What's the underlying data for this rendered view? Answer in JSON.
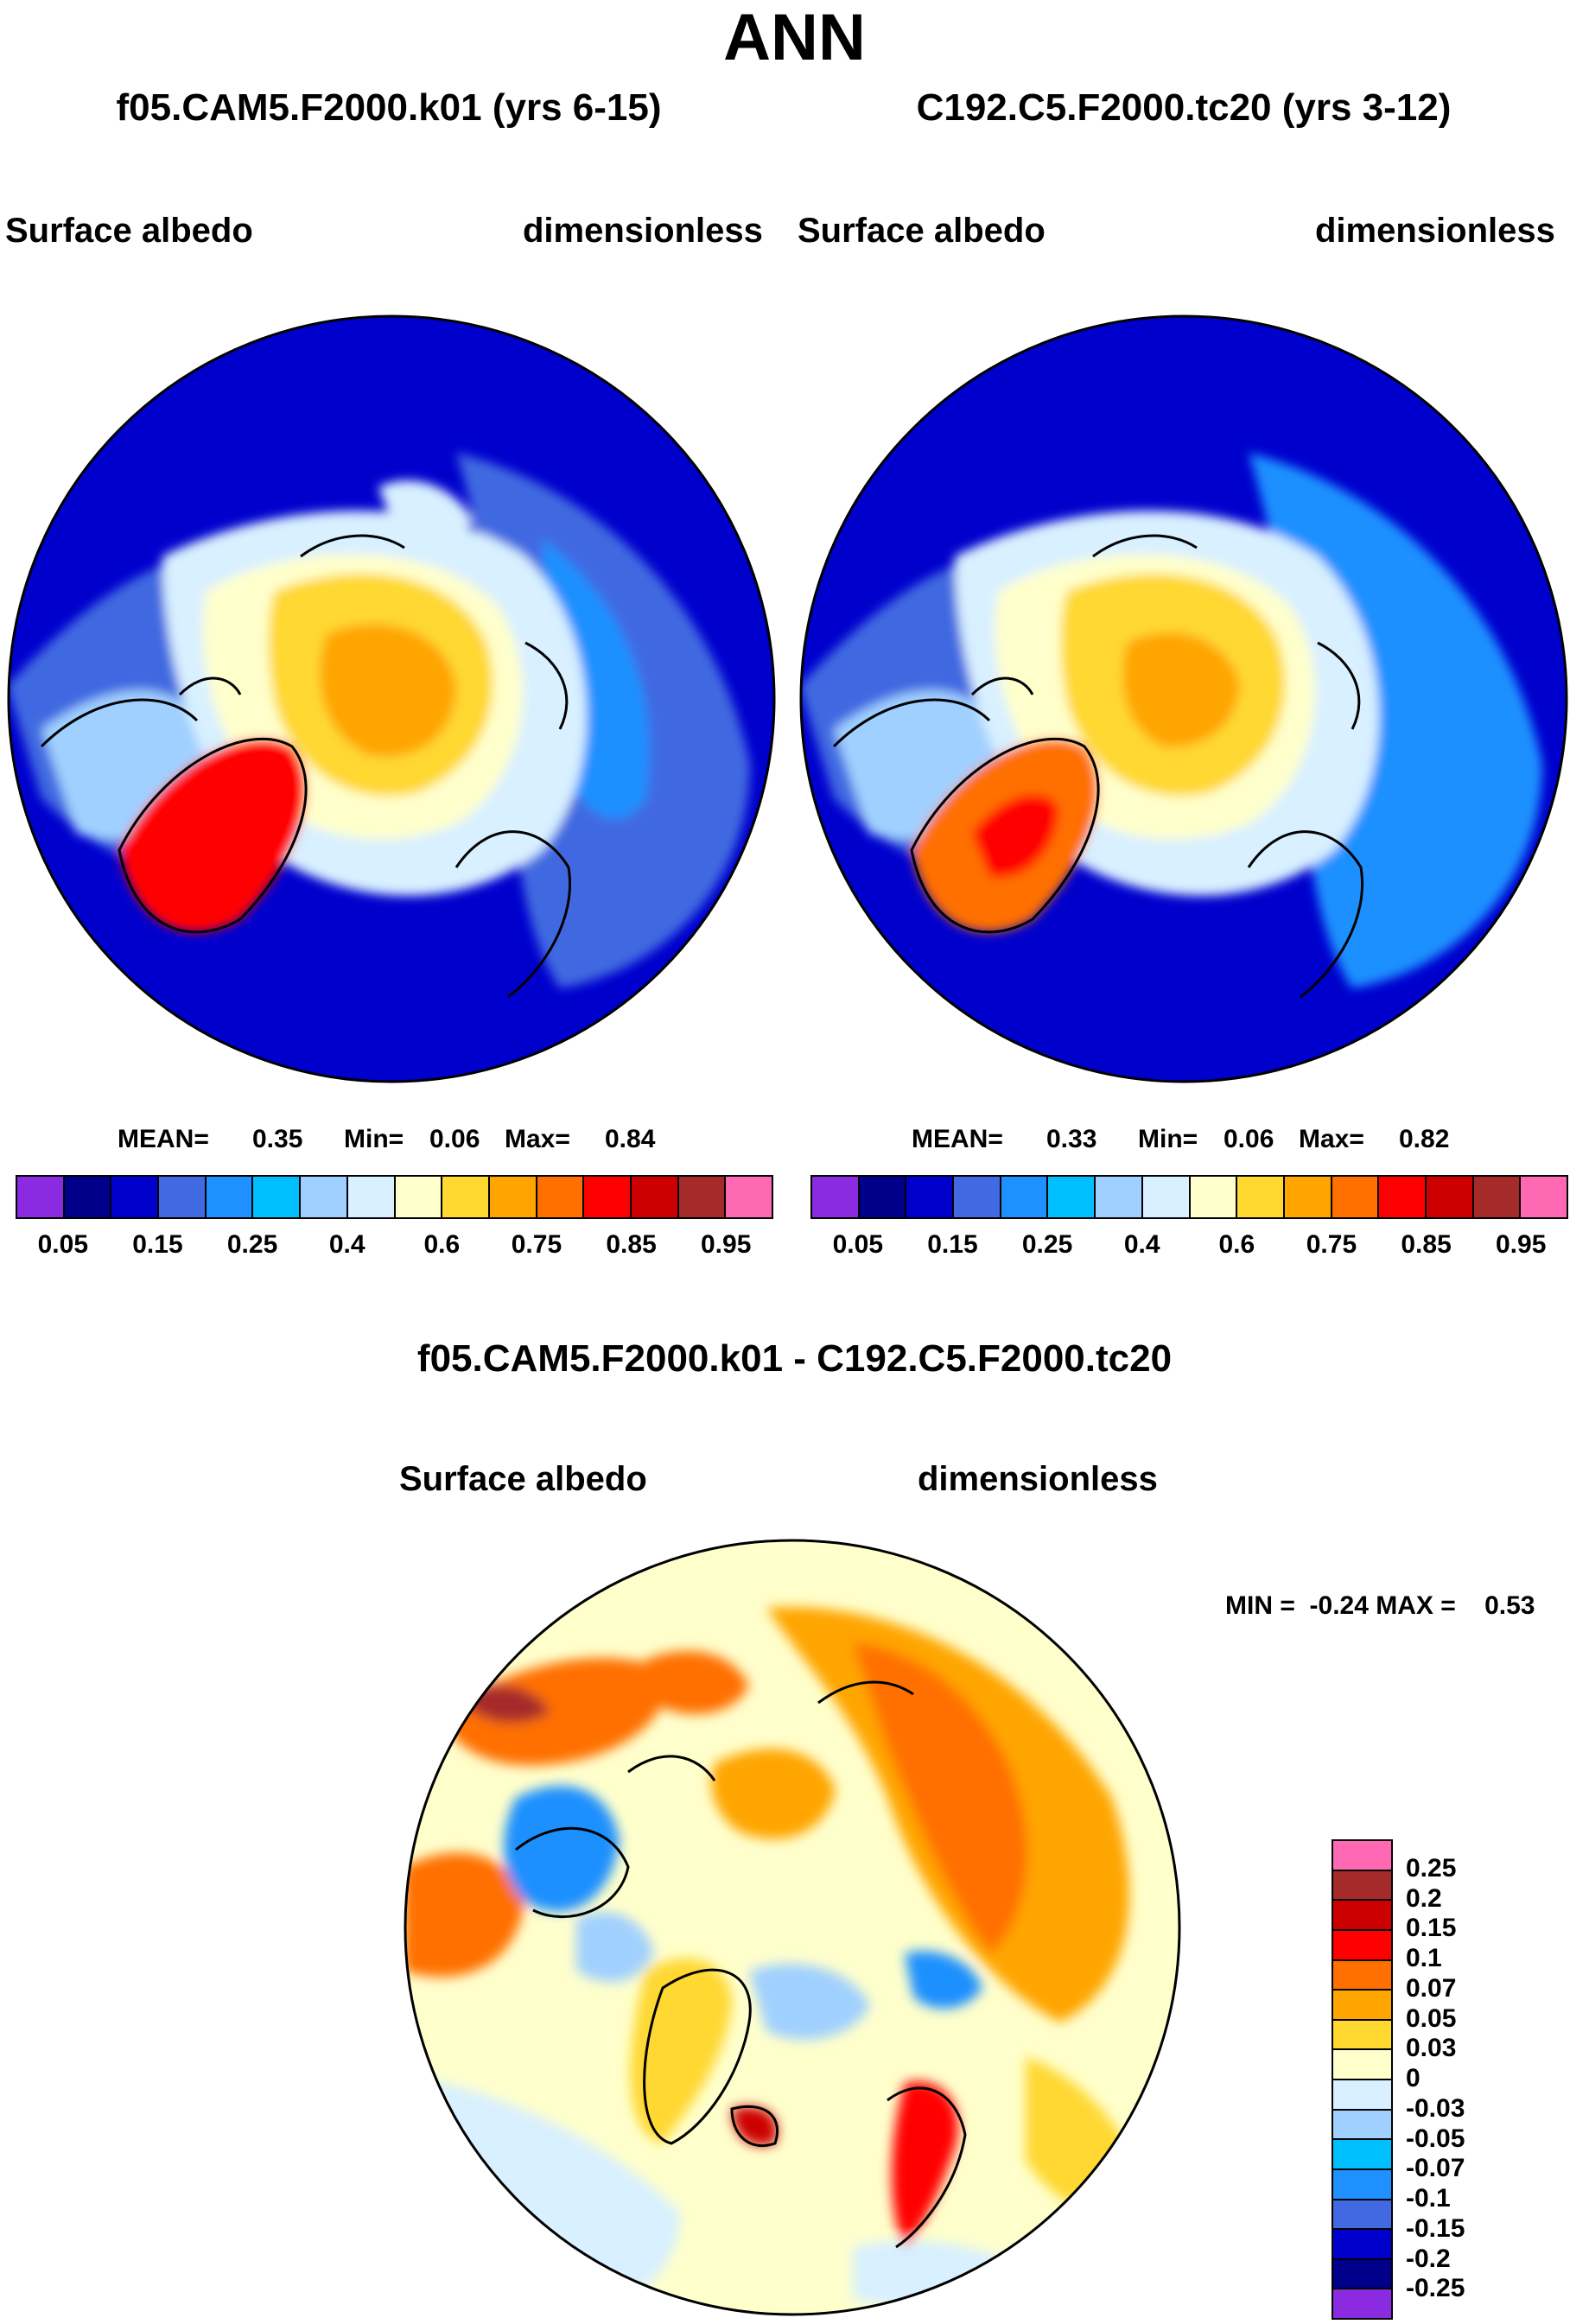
{
  "title": "ANN",
  "panels": [
    {
      "case": "f05.CAM5.F2000.k01 (yrs 6-15)",
      "variable": "Surface albedo",
      "units": "dimensionless",
      "stats": {
        "mean_label": "MEAN=",
        "mean": "0.35",
        "min_label": "Min=",
        "min": "0.06",
        "max_label": "Max=",
        "max": "0.84"
      }
    },
    {
      "case": "C192.C5.F2000.tc20 (yrs 3-12)",
      "variable": "Surface albedo",
      "units": "dimensionless",
      "stats": {
        "mean_label": "MEAN=",
        "mean": "0.33",
        "min_label": "Min=",
        "min": "0.06",
        "max_label": "Max=",
        "max": "0.82"
      }
    }
  ],
  "diff": {
    "title": "f05.CAM5.F2000.k01 - C192.C5.F2000.tc20",
    "variable": "Surface albedo",
    "units": "dimensionless",
    "minmax": "MIN =  -0.24 MAX =    0.53"
  },
  "chart_data": [
    {
      "type": "heatmap",
      "projection": "north polar stereographic",
      "title": "f05.CAM5.F2000.k01 (yrs 6-15)",
      "variable": "Surface albedo",
      "units": "dimensionless",
      "mean": 0.35,
      "min": 0.06,
      "max": 0.84
    },
    {
      "type": "heatmap",
      "projection": "north polar stereographic",
      "title": "C192.C5.F2000.tc20 (yrs 3-12)",
      "variable": "Surface albedo",
      "units": "dimensionless",
      "mean": 0.33,
      "min": 0.06,
      "max": 0.82
    },
    {
      "type": "heatmap",
      "projection": "north polar stereographic",
      "title": "f05.CAM5.F2000.k01 - C192.C5.F2000.tc20",
      "variable": "Surface albedo",
      "units": "dimensionless",
      "min": -0.24,
      "max": 0.53
    }
  ],
  "colorbar_abs": {
    "colors": [
      "#8a2be2",
      "#00008b",
      "#0000cd",
      "#4169e1",
      "#1e90ff",
      "#00bfff",
      "#a0d0ff",
      "#d8f0ff",
      "#ffffcc",
      "#ffd830",
      "#ffa500",
      "#ff7000",
      "#ff0000",
      "#cc0000",
      "#a52a2a",
      "#ff69b4"
    ],
    "labels": [
      "0.05",
      "0.15",
      "0.25",
      "0.4",
      "0.6",
      "0.75",
      "0.85",
      "0.95"
    ],
    "label_boundaries": [
      1,
      3,
      5,
      7,
      9,
      11,
      13,
      15
    ]
  },
  "colorbar_diff": {
    "colors": [
      "#ff69b4",
      "#a52a2a",
      "#cc0000",
      "#ff0000",
      "#ff7000",
      "#ffa500",
      "#ffd830",
      "#ffffcc",
      "#d8f0ff",
      "#a0d0ff",
      "#00bfff",
      "#1e90ff",
      "#4169e1",
      "#0000cd",
      "#00008b",
      "#8a2be2"
    ],
    "labels": [
      "0.25",
      "0.2",
      "0.15",
      "0.1",
      "0.07",
      "0.05",
      "0.03",
      "0",
      "-0.03",
      "-0.05",
      "-0.07",
      "-0.1",
      "-0.15",
      "-0.2",
      "-0.25"
    ]
  }
}
